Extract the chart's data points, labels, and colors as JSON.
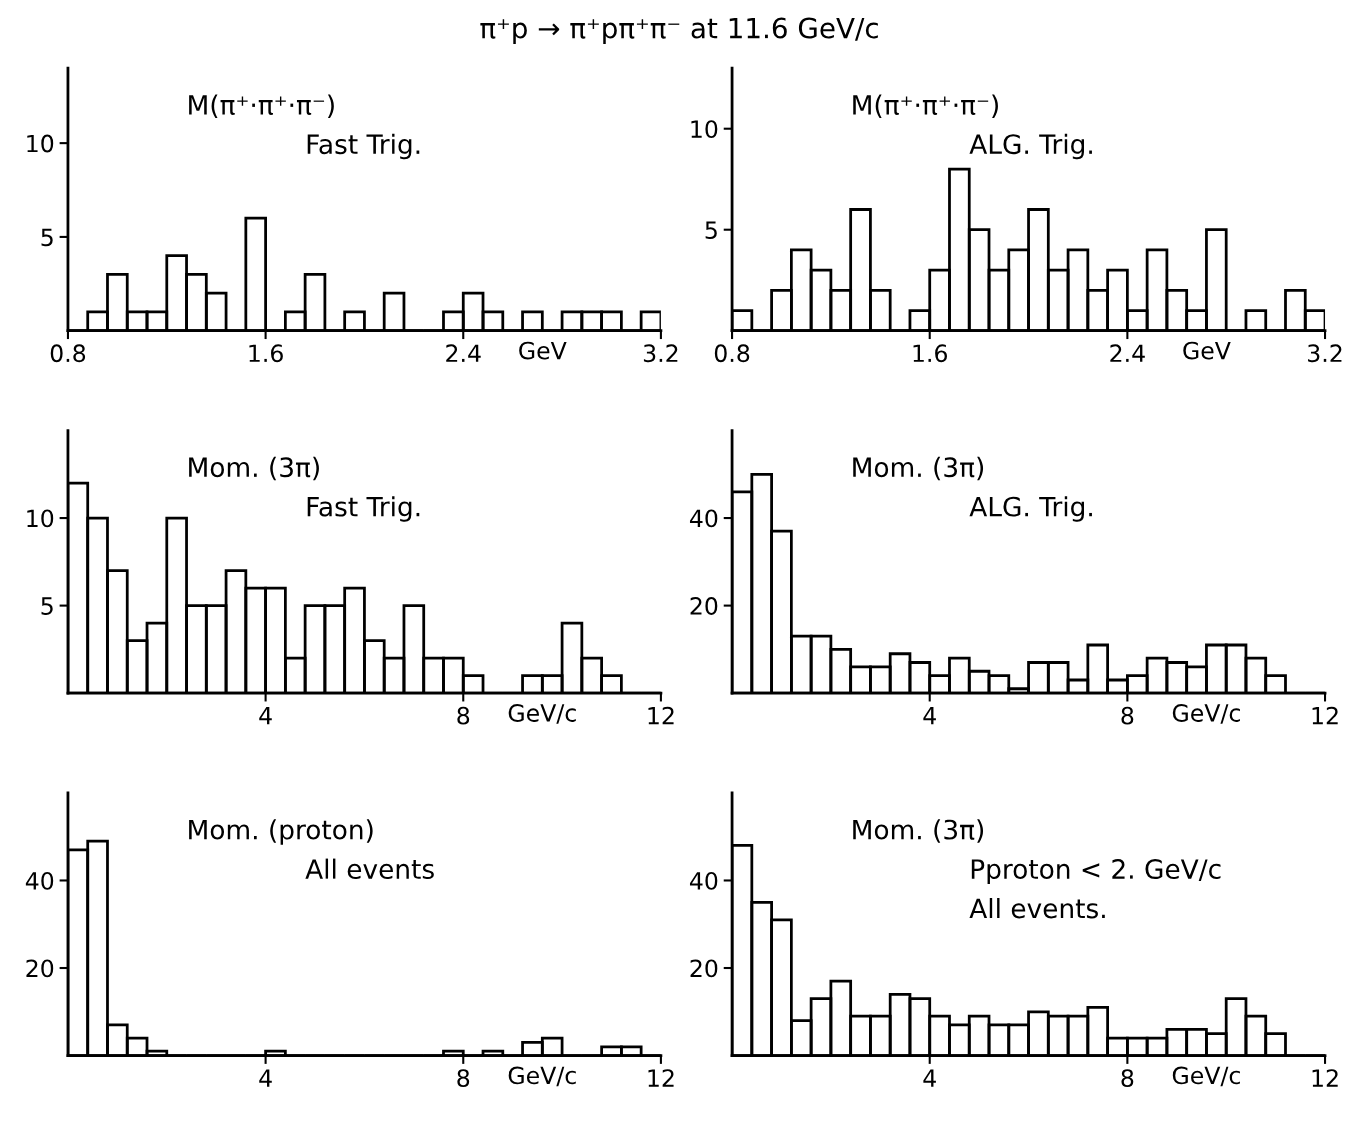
{
  "chart_data": [
    {
      "type": "histogram",
      "title": "π⁺p → π⁺pπ⁺π⁻ at 11.6 GeV/c",
      "xlabel": "GeV",
      "annotations": [
        "M(π⁺·π⁺·π⁻)",
        "Fast Trig."
      ],
      "bins": [
        0.8,
        0.88,
        0.96,
        1.04,
        1.12,
        1.2,
        1.28,
        1.36,
        1.44,
        1.52,
        1.6,
        1.68,
        1.76,
        1.84,
        1.92,
        2.0,
        2.08,
        2.16,
        2.24,
        2.32,
        2.4,
        2.48,
        2.56,
        2.64,
        2.72,
        2.8,
        2.88,
        2.96,
        3.04,
        3.12,
        3.2
      ],
      "values": [
        0,
        1,
        3,
        1,
        1,
        4,
        3,
        2,
        0,
        6,
        0,
        1,
        3,
        0,
        1,
        0,
        2,
        0,
        0,
        1,
        2,
        1,
        0,
        1,
        0,
        1,
        1,
        1,
        0,
        1
      ],
      "color": "#000000",
      "xlim": [
        0.8,
        3.2
      ],
      "ylim": [
        0,
        14
      ],
      "xticks": [
        0.8,
        1.6,
        2.4,
        3.2
      ],
      "yticks": [
        5,
        10
      ],
      "grid": false,
      "legend": false
    },
    {
      "type": "histogram",
      "xlabel": "GeV",
      "annotations": [
        "M(π⁺·π⁺·π⁻)",
        "ALG. Trig."
      ],
      "bins": [
        0.8,
        0.88,
        0.96,
        1.04,
        1.12,
        1.2,
        1.28,
        1.36,
        1.44,
        1.52,
        1.6,
        1.68,
        1.76,
        1.84,
        1.92,
        2.0,
        2.08,
        2.16,
        2.24,
        2.32,
        2.4,
        2.48,
        2.56,
        2.64,
        2.72,
        2.8,
        2.88,
        2.96,
        3.04,
        3.12,
        3.2
      ],
      "values": [
        1,
        0,
        2,
        4,
        3,
        2,
        6,
        2,
        0,
        1,
        3,
        8,
        5,
        3,
        4,
        6,
        3,
        4,
        2,
        3,
        1,
        4,
        2,
        1,
        5,
        0,
        1,
        0,
        2,
        1
      ],
      "color": "#000000",
      "xlim": [
        0.8,
        3.2
      ],
      "ylim": [
        0,
        13
      ],
      "xticks": [
        0.8,
        1.6,
        2.4,
        3.2
      ],
      "yticks": [
        5,
        10
      ],
      "grid": false,
      "legend": false
    },
    {
      "type": "histogram",
      "xlabel": "GeV/c",
      "annotations": [
        "Mom. (3π)",
        "Fast Trig."
      ],
      "bins": [
        0,
        0.4,
        0.8,
        1.2,
        1.6,
        2.0,
        2.4,
        2.8,
        3.2,
        3.6,
        4.0,
        4.4,
        4.8,
        5.2,
        5.6,
        6.0,
        6.4,
        6.8,
        7.2,
        7.6,
        8.0,
        8.4,
        8.8,
        9.2,
        9.6,
        10.0,
        10.4,
        10.8,
        11.2,
        11.6,
        12.0
      ],
      "values": [
        12,
        10,
        7,
        3,
        4,
        10,
        5,
        5,
        7,
        6,
        6,
        2,
        5,
        5,
        6,
        3,
        2,
        5,
        2,
        2,
        1,
        0,
        0,
        1,
        1,
        4,
        2,
        1,
        0,
        0
      ],
      "color": "#000000",
      "xlim": [
        0,
        12
      ],
      "ylim": [
        0,
        15
      ],
      "xticks": [
        4,
        8,
        12
      ],
      "yticks": [
        5,
        10
      ],
      "grid": false,
      "legend": false
    },
    {
      "type": "histogram",
      "xlabel": "GeV/c",
      "annotations": [
        "Mom. (3π)",
        "ALG. Trig."
      ],
      "bins": [
        0,
        0.4,
        0.8,
        1.2,
        1.6,
        2.0,
        2.4,
        2.8,
        3.2,
        3.6,
        4.0,
        4.4,
        4.8,
        5.2,
        5.6,
        6.0,
        6.4,
        6.8,
        7.2,
        7.6,
        8.0,
        8.4,
        8.8,
        9.2,
        9.6,
        10.0,
        10.4,
        10.8,
        11.2,
        11.6,
        12.0
      ],
      "values": [
        46,
        50,
        37,
        13,
        13,
        10,
        6,
        6,
        9,
        7,
        4,
        8,
        5,
        4,
        1,
        7,
        7,
        3,
        11,
        3,
        4,
        8,
        7,
        6,
        11,
        11,
        8,
        4,
        0,
        0
      ],
      "color": "#000000",
      "xlim": [
        0,
        12
      ],
      "ylim": [
        0,
        60
      ],
      "xticks": [
        4,
        8,
        12
      ],
      "yticks": [
        20,
        40
      ],
      "grid": false,
      "legend": false
    },
    {
      "type": "histogram",
      "xlabel": "GeV/c",
      "annotations": [
        "Mom. (proton)",
        "All events"
      ],
      "bins": [
        0,
        0.4,
        0.8,
        1.2,
        1.6,
        2.0,
        2.4,
        2.8,
        3.2,
        3.6,
        4.0,
        4.4,
        4.8,
        5.2,
        5.6,
        6.0,
        6.4,
        6.8,
        7.2,
        7.6,
        8.0,
        8.4,
        8.8,
        9.2,
        9.6,
        10.0,
        10.4,
        10.8,
        11.2,
        11.6,
        12.0
      ],
      "values": [
        47,
        49,
        7,
        4,
        1,
        0,
        0,
        0,
        0,
        0,
        1,
        0,
        0,
        0,
        0,
        0,
        0,
        0,
        0,
        1,
        0,
        1,
        0,
        3,
        4,
        0,
        0,
        2,
        2,
        0
      ],
      "color": "#000000",
      "xlim": [
        0,
        12
      ],
      "ylim": [
        0,
        60
      ],
      "xticks": [
        4,
        8,
        12
      ],
      "yticks": [
        20,
        40
      ],
      "grid": false,
      "legend": false
    },
    {
      "type": "histogram",
      "xlabel": "GeV/c",
      "annotations": [
        "Mom. (3π)",
        "Pproton < 2. GeV/c",
        "All events."
      ],
      "bins": [
        0,
        0.4,
        0.8,
        1.2,
        1.6,
        2.0,
        2.4,
        2.8,
        3.2,
        3.6,
        4.0,
        4.4,
        4.8,
        5.2,
        5.6,
        6.0,
        6.4,
        6.8,
        7.2,
        7.6,
        8.0,
        8.4,
        8.8,
        9.2,
        9.6,
        10.0,
        10.4,
        10.8,
        11.2,
        11.6,
        12.0
      ],
      "values": [
        48,
        35,
        31,
        8,
        13,
        17,
        9,
        9,
        14,
        13,
        9,
        7,
        9,
        7,
        7,
        10,
        9,
        9,
        11,
        4,
        4,
        4,
        6,
        6,
        5,
        13,
        9,
        5,
        0,
        0
      ],
      "color": "#000000",
      "xlim": [
        0,
        12
      ],
      "ylim": [
        0,
        60
      ],
      "xticks": [
        4,
        8,
        12
      ],
      "yticks": [
        20,
        40
      ],
      "grid": false,
      "legend": false
    }
  ]
}
